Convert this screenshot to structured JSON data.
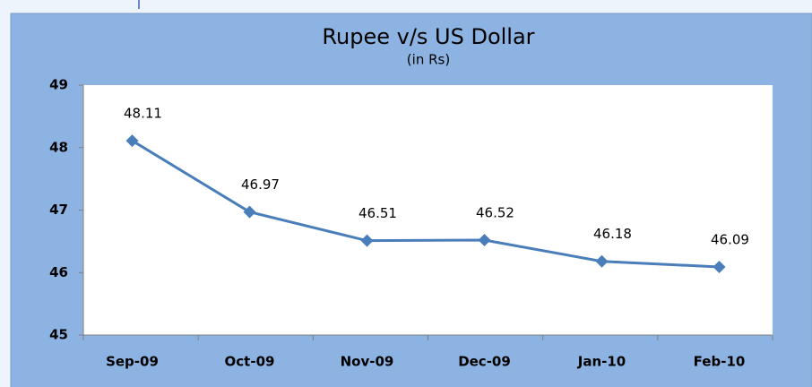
{
  "chart_data": {
    "type": "line",
    "title": "Rupee v/s US Dollar",
    "subtitle": "(in Rs)",
    "categories": [
      "Sep-09",
      "Oct-09",
      "Nov-09",
      "Dec-09",
      "Jan-10",
      "Feb-10"
    ],
    "values": [
      48.11,
      46.97,
      46.51,
      46.52,
      46.18,
      46.09
    ],
    "color": "#4a7ebb",
    "ylim": [
      45,
      49
    ],
    "yticks": [
      45,
      46,
      47,
      48,
      49
    ],
    "grid": false
  }
}
